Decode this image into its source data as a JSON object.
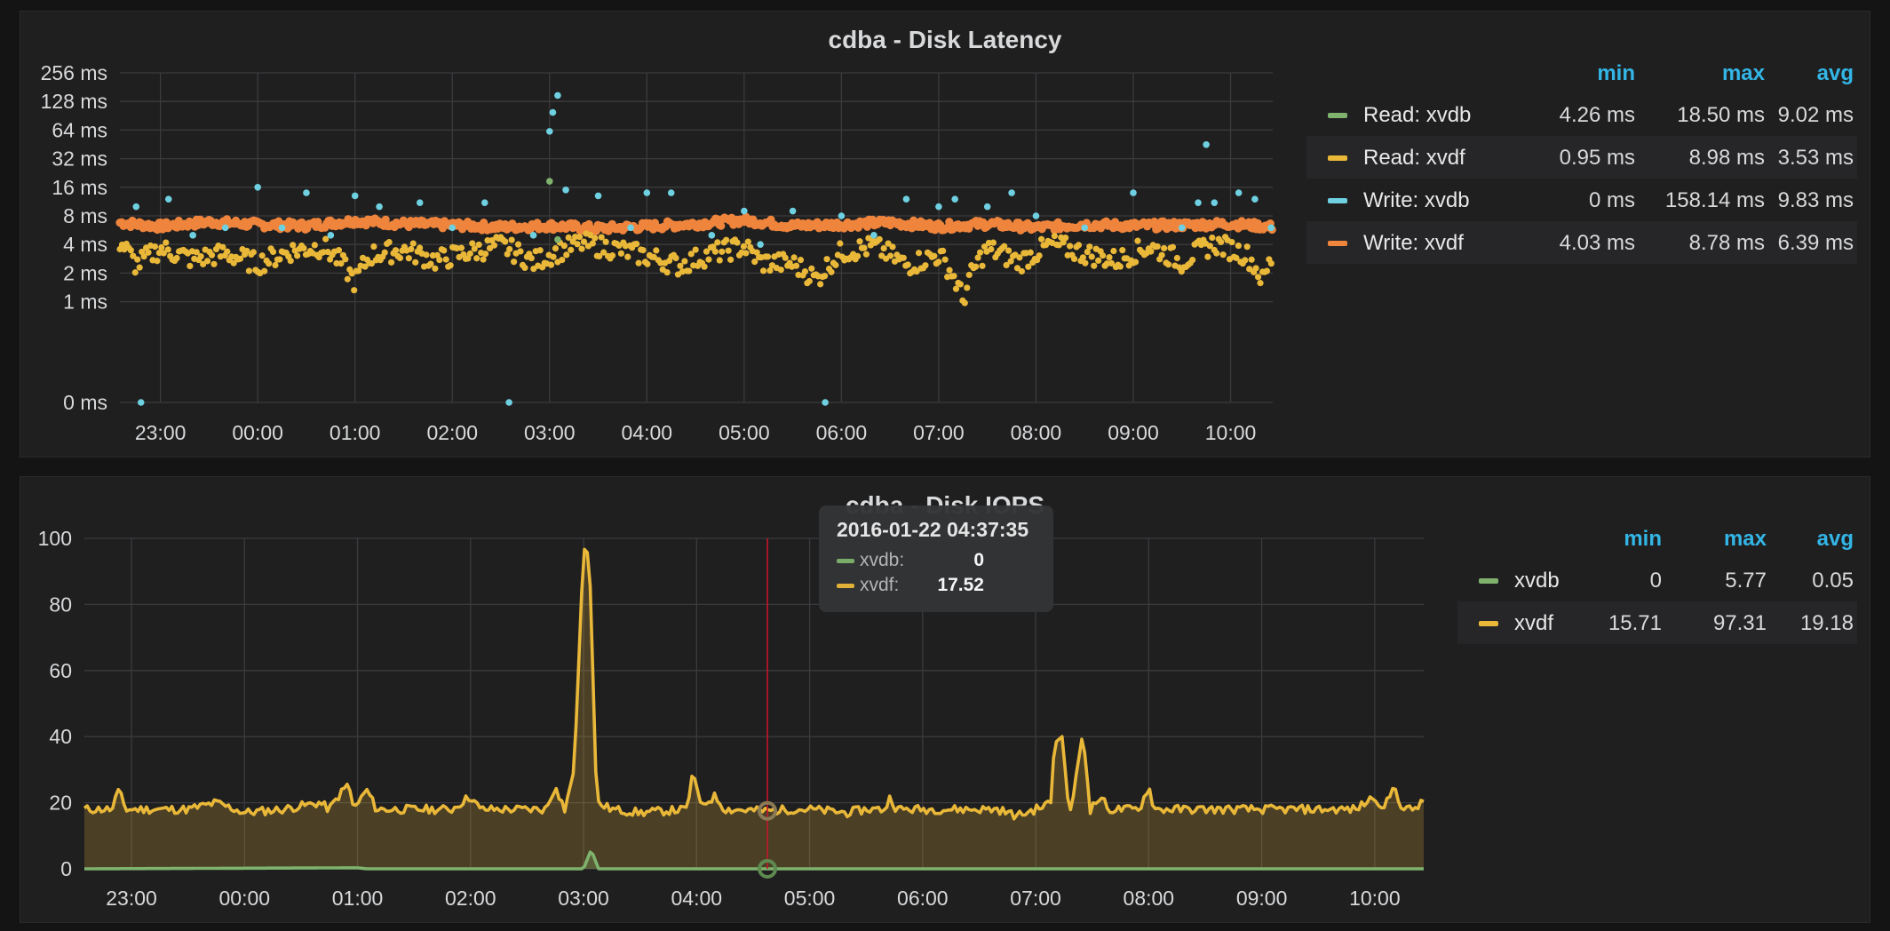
{
  "panels": {
    "latency": {
      "title": "cdba - Disk Latency",
      "legend": {
        "headers": [
          "min",
          "max",
          "avg"
        ],
        "rows": [
          {
            "name": "Read: xvdb",
            "color": "#7eb26d",
            "min": "4.26 ms",
            "max": "18.50 ms",
            "avg": "9.02 ms"
          },
          {
            "name": "Read: xvdf",
            "color": "#eab839",
            "min": "0.95 ms",
            "max": "8.98 ms",
            "avg": "3.53 ms"
          },
          {
            "name": "Write: xvdb",
            "color": "#6ed0e0",
            "min": "0 ms",
            "max": "158.14 ms",
            "avg": "9.83 ms"
          },
          {
            "name": "Write: xvdf",
            "color": "#ef843c",
            "min": "4.03 ms",
            "max": "8.78 ms",
            "avg": "6.39 ms"
          }
        ]
      }
    },
    "iops": {
      "title": "cdba - Disk IOPS",
      "legend": {
        "headers": [
          "min",
          "max",
          "avg"
        ],
        "rows": [
          {
            "name": "xvdb",
            "color": "#7eb26d",
            "min": "0",
            "max": "5.77",
            "avg": "0.05"
          },
          {
            "name": "xvdf",
            "color": "#eab839",
            "min": "15.71",
            "max": "97.31",
            "avg": "19.18"
          }
        ]
      },
      "tooltip": {
        "time": "2016-01-22 04:37:35",
        "rows": [
          {
            "label": "xvdb:",
            "value": "0",
            "color": "#7eb26d"
          },
          {
            "label": "xvdf:",
            "value": "17.52",
            "color": "#eab839"
          }
        ]
      }
    }
  },
  "chart_data": [
    {
      "type": "scatter",
      "title": "cdba - Disk Latency",
      "y_scale": "log2",
      "y_ticks": [
        "256 ms",
        "128 ms",
        "64 ms",
        "32 ms",
        "16 ms",
        "8 ms",
        "4 ms",
        "2 ms",
        "1 ms",
        "0 ms"
      ],
      "x_ticks": [
        "23:00",
        "00:00",
        "01:00",
        "02:00",
        "03:00",
        "04:00",
        "05:00",
        "06:00",
        "07:00",
        "08:00",
        "09:00",
        "10:00"
      ],
      "x_range": [
        "22:35",
        "10:26"
      ],
      "grid": true,
      "legend_position": "right",
      "series": [
        {
          "name": "Write: xvdf",
          "color": "#ef843c",
          "approx_level_ms": 6.4,
          "points": [
            [
              "22:35",
              6.8
            ],
            [
              "23:00",
              6.2
            ],
            [
              "23:30",
              6.9
            ],
            [
              "00:00",
              6.5
            ],
            [
              "00:30",
              6.3
            ],
            [
              "01:00",
              7.1
            ],
            [
              "01:30",
              6.6
            ],
            [
              "02:00",
              6.4
            ],
            [
              "02:30",
              6.1
            ],
            [
              "03:00",
              6.3
            ],
            [
              "03:30",
              5.9
            ],
            [
              "04:00",
              6.2
            ],
            [
              "04:30",
              6.6
            ],
            [
              "05:00",
              7.2
            ],
            [
              "05:30",
              6.3
            ],
            [
              "06:00",
              6.5
            ],
            [
              "06:30",
              6.8
            ],
            [
              "07:00",
              6.2
            ],
            [
              "07:30",
              6.6
            ],
            [
              "08:00",
              6.0
            ],
            [
              "08:30",
              6.5
            ],
            [
              "09:00",
              6.3
            ],
            [
              "09:30",
              6.4
            ],
            [
              "10:00",
              6.6
            ],
            [
              "10:26",
              6.1
            ]
          ]
        },
        {
          "name": "Read: xvdf",
          "color": "#eab839",
          "approx_level_ms": 3.5,
          "points": [
            [
              "22:35",
              4.2
            ],
            [
              "22:45",
              2.4
            ],
            [
              "23:00",
              3.6
            ],
            [
              "23:20",
              2.8
            ],
            [
              "23:40",
              3.2
            ],
            [
              "00:00",
              2.5
            ],
            [
              "00:20",
              3.4
            ],
            [
              "00:40",
              3.8
            ],
            [
              "01:00",
              1.6
            ],
            [
              "01:10",
              3.1
            ],
            [
              "01:30",
              3.5
            ],
            [
              "01:50",
              2.7
            ],
            [
              "02:10",
              3.3
            ],
            [
              "02:30",
              3.9
            ],
            [
              "02:50",
              2.6
            ],
            [
              "03:00",
              3.1
            ],
            [
              "03:20",
              4.1
            ],
            [
              "03:40",
              3.6
            ],
            [
              "04:00",
              3.0
            ],
            [
              "04:20",
              2.4
            ],
            [
              "04:40",
              3.2
            ],
            [
              "05:00",
              3.8
            ],
            [
              "05:10",
              2.6
            ],
            [
              "05:30",
              2.5
            ],
            [
              "05:45",
              1.7
            ],
            [
              "06:00",
              3.3
            ],
            [
              "06:20",
              3.8
            ],
            [
              "06:40",
              2.4
            ],
            [
              "07:00",
              3.1
            ],
            [
              "07:15",
              1.0
            ],
            [
              "07:30",
              3.6
            ],
            [
              "07:50",
              2.6
            ],
            [
              "08:10",
              4.0
            ],
            [
              "08:30",
              3.2
            ],
            [
              "08:50",
              2.7
            ],
            [
              "09:10",
              3.8
            ],
            [
              "09:30",
              2.6
            ],
            [
              "09:50",
              4.1
            ],
            [
              "10:10",
              3.1
            ],
            [
              "10:20",
              1.6
            ],
            [
              "10:26",
              3.0
            ]
          ]
        },
        {
          "name": "Write: xvdb",
          "color": "#6ed0e0",
          "approx_level_ms": 9.8,
          "points": [
            [
              "22:45",
              10
            ],
            [
              "22:48",
              0
            ],
            [
              "23:05",
              12
            ],
            [
              "23:20",
              5
            ],
            [
              "23:40",
              6
            ],
            [
              "00:00",
              16
            ],
            [
              "00:15",
              6
            ],
            [
              "00:30",
              14
            ],
            [
              "00:45",
              5
            ],
            [
              "01:00",
              13
            ],
            [
              "01:15",
              10
            ],
            [
              "01:40",
              11
            ],
            [
              "02:00",
              6
            ],
            [
              "02:20",
              11
            ],
            [
              "02:35",
              0
            ],
            [
              "02:50",
              5
            ],
            [
              "03:00",
              62
            ],
            [
              "03:02",
              98
            ],
            [
              "03:05",
              148
            ],
            [
              "03:10",
              15
            ],
            [
              "03:30",
              13
            ],
            [
              "03:50",
              6
            ],
            [
              "04:00",
              14
            ],
            [
              "04:15",
              14
            ],
            [
              "04:40",
              5
            ],
            [
              "05:00",
              9
            ],
            [
              "05:10",
              4
            ],
            [
              "05:30",
              9
            ],
            [
              "05:50",
              0
            ],
            [
              "06:00",
              8
            ],
            [
              "06:20",
              5
            ],
            [
              "06:40",
              12
            ],
            [
              "07:00",
              10
            ],
            [
              "07:10",
              12
            ],
            [
              "07:30",
              10
            ],
            [
              "07:45",
              14
            ],
            [
              "08:00",
              8
            ],
            [
              "08:30",
              6
            ],
            [
              "09:00",
              14
            ],
            [
              "09:30",
              6
            ],
            [
              "09:40",
              11
            ],
            [
              "09:45",
              45
            ],
            [
              "09:50",
              11
            ],
            [
              "10:05",
              14
            ],
            [
              "10:15",
              12
            ],
            [
              "10:25",
              6
            ]
          ]
        },
        {
          "name": "Read: xvdb",
          "color": "#7eb26d",
          "approx_level_ms": 9.0,
          "points": [
            [
              "03:00",
              18.5
            ],
            [
              "03:05",
              4.5
            ]
          ]
        }
      ]
    },
    {
      "type": "area",
      "title": "cdba - Disk IOPS",
      "y_ticks": [
        0,
        20,
        40,
        60,
        80,
        100
      ],
      "ylim": [
        0,
        100
      ],
      "x_ticks": [
        "23:00",
        "00:00",
        "01:00",
        "02:00",
        "03:00",
        "04:00",
        "05:00",
        "06:00",
        "07:00",
        "08:00",
        "09:00",
        "10:00"
      ],
      "x_range": [
        "22:35",
        "10:26"
      ],
      "grid": true,
      "legend_position": "right",
      "cursor_time": "04:37:35",
      "series": [
        {
          "name": "xvdf",
          "color": "#eab839",
          "points": [
            [
              "22:35",
              18
            ],
            [
              "22:50",
              18
            ],
            [
              "22:53",
              24
            ],
            [
              "22:57",
              18
            ],
            [
              "23:30",
              18
            ],
            [
              "23:45",
              20
            ],
            [
              "00:00",
              17
            ],
            [
              "00:20",
              18
            ],
            [
              "00:40",
              20
            ],
            [
              "00:45",
              18
            ],
            [
              "00:55",
              26
            ],
            [
              "00:58",
              18
            ],
            [
              "01:05",
              24
            ],
            [
              "01:10",
              18
            ],
            [
              "01:30",
              18
            ],
            [
              "01:50",
              18
            ],
            [
              "02:00",
              22
            ],
            [
              "02:05",
              18
            ],
            [
              "02:40",
              18
            ],
            [
              "02:45",
              25
            ],
            [
              "02:50",
              18
            ],
            [
              "02:55",
              30
            ],
            [
              "03:00",
              97
            ],
            [
              "03:03",
              95
            ],
            [
              "03:07",
              20
            ],
            [
              "03:15",
              18
            ],
            [
              "03:30",
              17
            ],
            [
              "03:55",
              18
            ],
            [
              "03:58",
              30
            ],
            [
              "04:02",
              19
            ],
            [
              "04:10",
              22
            ],
            [
              "04:15",
              18
            ],
            [
              "04:37",
              17.52
            ],
            [
              "04:50",
              18
            ],
            [
              "05:00",
              18
            ],
            [
              "05:20",
              17
            ],
            [
              "05:30",
              18
            ],
            [
              "05:40",
              18
            ],
            [
              "05:43",
              22
            ],
            [
              "05:46",
              18
            ],
            [
              "06:20",
              18
            ],
            [
              "06:40",
              18
            ],
            [
              "06:50",
              16
            ],
            [
              "07:00",
              18
            ],
            [
              "07:08",
              20
            ],
            [
              "07:10",
              38
            ],
            [
              "07:14",
              40
            ],
            [
              "07:18",
              16
            ],
            [
              "07:25",
              41
            ],
            [
              "07:29",
              18
            ],
            [
              "07:35",
              22
            ],
            [
              "07:38",
              18
            ],
            [
              "07:45",
              18
            ],
            [
              "07:55",
              18
            ],
            [
              "08:00",
              25
            ],
            [
              "08:03",
              18
            ],
            [
              "08:30",
              18
            ],
            [
              "08:50",
              18
            ],
            [
              "09:00",
              18
            ],
            [
              "09:30",
              18
            ],
            [
              "09:50",
              18
            ],
            [
              "10:00",
              22
            ],
            [
              "10:05",
              18
            ],
            [
              "10:10",
              25
            ],
            [
              "10:15",
              18
            ],
            [
              "10:20",
              18
            ],
            [
              "10:26",
              20
            ]
          ]
        },
        {
          "name": "xvdb",
          "color": "#7eb26d",
          "points": [
            [
              "22:35",
              0
            ],
            [
              "01:00",
              0.3
            ],
            [
              "01:05",
              0
            ],
            [
              "03:00",
              0
            ],
            [
              "03:04",
              5.77
            ],
            [
              "03:08",
              0
            ],
            [
              "04:37",
              0
            ],
            [
              "10:26",
              0
            ]
          ]
        }
      ]
    }
  ]
}
